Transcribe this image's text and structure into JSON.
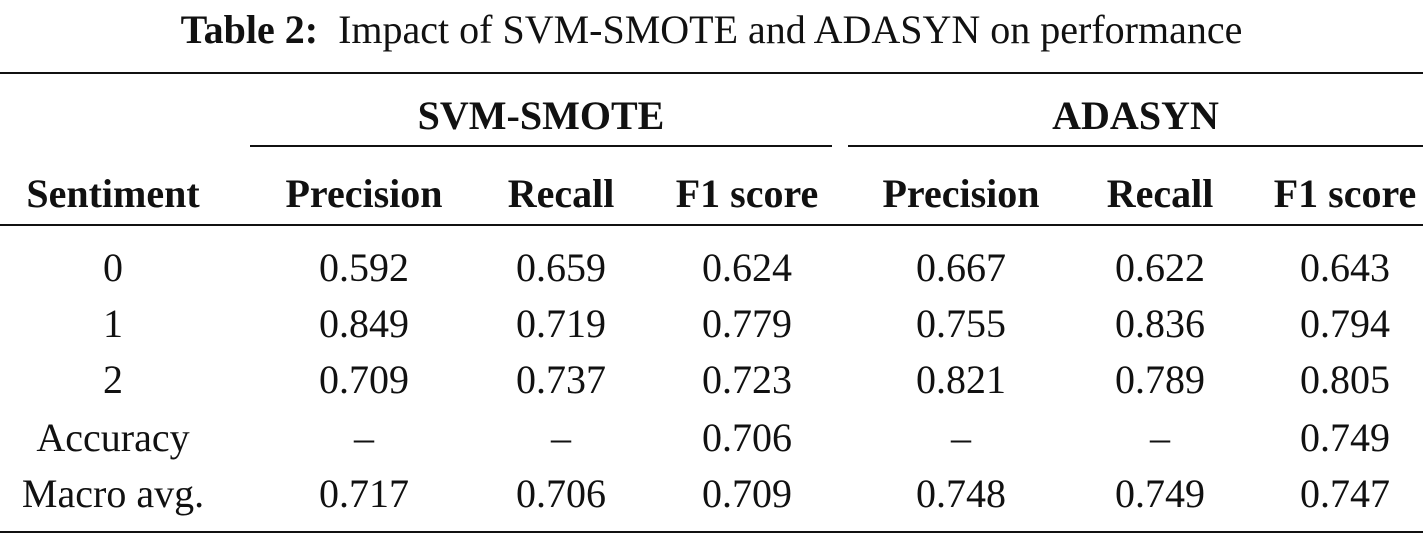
{
  "caption": {
    "label": "Table 2:",
    "text": "Impact of SVM-SMOTE and ADASYN on performance"
  },
  "groups": [
    "SVM-SMOTE",
    "ADASYN"
  ],
  "columns": [
    "Sentiment",
    "Precision",
    "Recall",
    "F1 score",
    "Precision",
    "Recall",
    "F1 score"
  ],
  "rows": [
    [
      "0",
      "0.592",
      "0.659",
      "0.624",
      "0.667",
      "0.622",
      "0.643"
    ],
    [
      "1",
      "0.849",
      "0.719",
      "0.779",
      "0.755",
      "0.836",
      "0.794"
    ],
    [
      "2",
      "0.709",
      "0.737",
      "0.723",
      "0.821",
      "0.789",
      "0.805"
    ],
    [
      "Accuracy",
      "–",
      "–",
      "0.706",
      "–",
      "–",
      "0.749"
    ],
    [
      "Macro avg.",
      "0.717",
      "0.706",
      "0.709",
      "0.748",
      "0.749",
      "0.747"
    ]
  ]
}
